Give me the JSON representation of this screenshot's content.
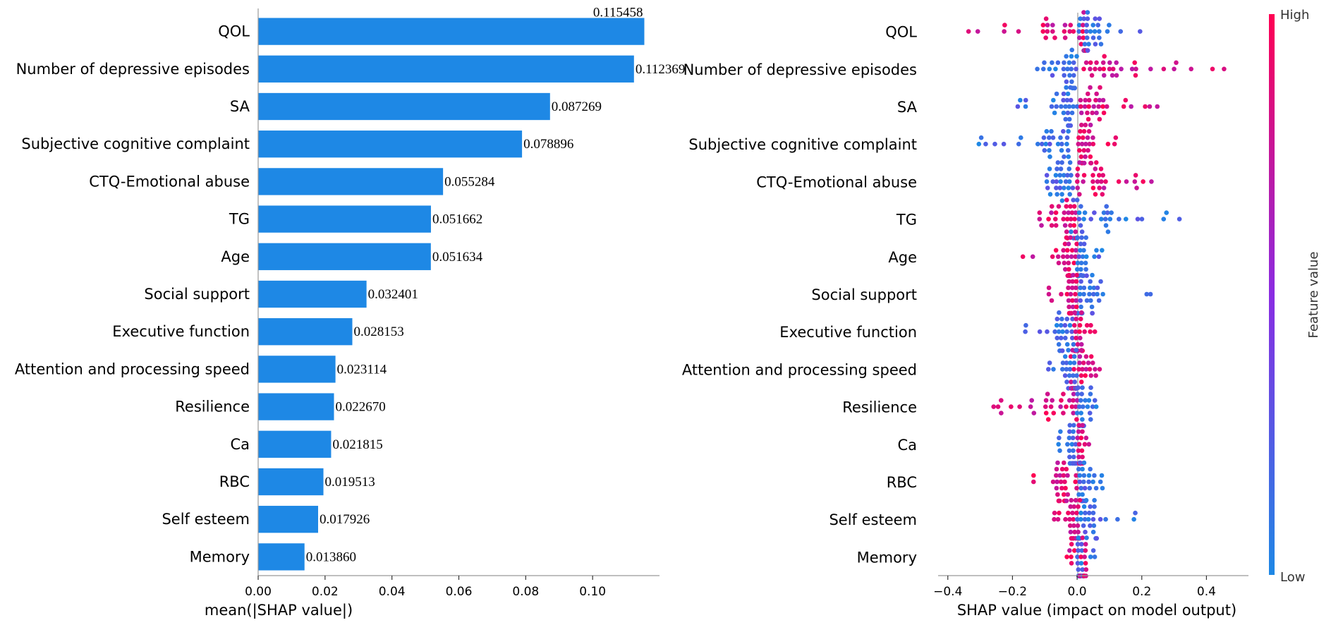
{
  "chart_data": [
    {
      "type": "bar",
      "orientation": "horizontal",
      "categories": [
        "QOL",
        "Number of depressive episodes",
        "SA",
        "Subjective cognitive complaint",
        "CTQ-Emotional abuse",
        "TG",
        "Age",
        "Social support",
        "Executive function",
        "Attention and processing speed",
        "Resilience",
        "Ca",
        "RBC",
        "Self esteem",
        "Memory"
      ],
      "values": [
        0.115458,
        0.112369,
        0.087269,
        0.078896,
        0.055284,
        0.051662,
        0.051634,
        0.032401,
        0.028153,
        0.023114,
        0.02267,
        0.021815,
        0.019513,
        0.017926,
        0.01386
      ],
      "value_labels": [
        "0.115458",
        "0.112369",
        "0.087269",
        "0.078896",
        "0.055284",
        "0.051662",
        "0.051634",
        "0.032401",
        "0.028153",
        "0.023114",
        "0.022670",
        "0.021815",
        "0.019513",
        "0.017926",
        "0.013860"
      ],
      "xlabel": "mean(|SHAP value|)",
      "xlim": [
        0,
        0.12
      ],
      "xticks": [
        "0.00",
        "0.02",
        "0.04",
        "0.06",
        "0.08",
        "0.10"
      ],
      "bar_color": "#1e88e5",
      "grid": false
    },
    {
      "type": "scatter",
      "subtype": "shap-beeswarm",
      "categories": [
        "QOL",
        "Number of depressive episodes",
        "SA",
        "Subjective cognitive complaint",
        "CTQ-Emotional abuse",
        "TG",
        "Age",
        "Social support",
        "Executive function",
        "Attention and processing speed",
        "Resilience",
        "Ca",
        "RBC",
        "Self esteem",
        "Memory"
      ],
      "series": [
        {
          "name": "QOL",
          "low_range": [
            0.0,
            0.21
          ],
          "high_range": [
            -0.37,
            0.03
          ],
          "direction": "high-negative"
        },
        {
          "name": "Number of depressive episodes",
          "low_range": [
            -0.13,
            0.0
          ],
          "high_range": [
            0.02,
            0.49
          ],
          "direction": "high-positive"
        },
        {
          "name": "SA",
          "low_range": [
            -0.23,
            0.0
          ],
          "high_range": [
            0.01,
            0.25
          ],
          "direction": "high-positive"
        },
        {
          "name": "Subjective cognitive complaint",
          "low_range": [
            -0.31,
            -0.02
          ],
          "high_range": [
            0.0,
            0.15
          ],
          "direction": "high-positive"
        },
        {
          "name": "CTQ-Emotional abuse",
          "low_range": [
            -0.18,
            -0.01
          ],
          "high_range": [
            0.0,
            0.24
          ],
          "direction": "high-positive"
        },
        {
          "name": "TG",
          "low_range": [
            -0.02,
            0.35
          ],
          "high_range": [
            -0.12,
            0.0
          ],
          "direction": "high-negative"
        },
        {
          "name": "Age",
          "low_range": [
            0.0,
            0.09
          ],
          "high_range": [
            -0.17,
            0.0
          ],
          "direction": "high-negative"
        },
        {
          "name": "Social support",
          "low_range": [
            0.0,
            0.23
          ],
          "high_range": [
            -0.09,
            0.0
          ],
          "direction": "high-negative"
        },
        {
          "name": "Executive function",
          "low_range": [
            -0.18,
            -0.01
          ],
          "high_range": [
            -0.01,
            0.07
          ],
          "direction": "high-positive"
        },
        {
          "name": "Attention and processing speed",
          "low_range": [
            -0.11,
            0.0
          ],
          "high_range": [
            -0.02,
            0.17
          ],
          "direction": "high-positive"
        },
        {
          "name": "Resilience",
          "low_range": [
            0.0,
            0.06
          ],
          "high_range": [
            -0.28,
            0.0
          ],
          "direction": "high-negative"
        },
        {
          "name": "Ca",
          "low_range": [
            -0.07,
            0.0
          ],
          "high_range": [
            0.0,
            0.05
          ],
          "direction": "high-positive"
        },
        {
          "name": "RBC",
          "low_range": [
            0.0,
            0.08
          ],
          "high_range": [
            -0.2,
            0.0
          ],
          "direction": "high-negative"
        },
        {
          "name": "Self esteem",
          "low_range": [
            0.0,
            0.2
          ],
          "high_range": [
            -0.08,
            0.01
          ],
          "direction": "high-negative"
        },
        {
          "name": "Memory",
          "low_range": [
            0.0,
            0.06
          ],
          "high_range": [
            -0.04,
            0.03
          ],
          "direction": "mixed"
        }
      ],
      "xlabel": "SHAP value (impact on model output)",
      "xlim": [
        -0.43,
        0.53
      ],
      "xticks": [
        "−0.4",
        "−0.2",
        "0.0",
        "0.2",
        "0.4"
      ],
      "colorbar": {
        "label": "Feature value",
        "high": "High",
        "low": "Low",
        "high_color": "#ff0052",
        "low_color": "#1e88e5",
        "mid_color": "#8a2ce2"
      }
    }
  ]
}
